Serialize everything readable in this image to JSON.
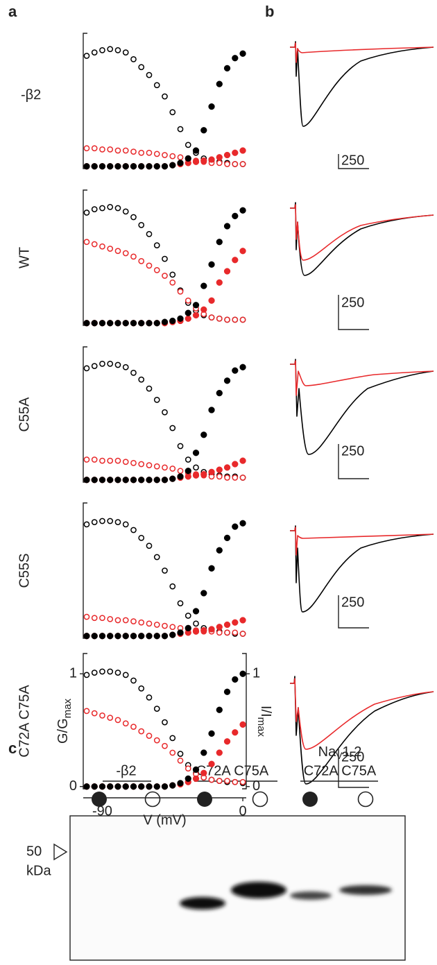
{
  "panel_labels": [
    "a",
    "b",
    "c"
  ],
  "chart_data": [
    {
      "type": "scatter",
      "title": "-β2",
      "x": [
        -100,
        -95,
        -90,
        -85,
        -80,
        -75,
        -70,
        -65,
        -60,
        -55,
        -50,
        -45,
        -40,
        -35,
        -30,
        -25,
        -20,
        -15,
        -10,
        -5,
        0
      ],
      "xlim": [
        -102.2,
        2.2
      ],
      "ylim": [
        -0.02,
        1.18
      ],
      "y2lim": [
        -0.02,
        1.18
      ],
      "series": [
        {
          "color": "#000000",
          "marker": "open",
          "axis": "y2",
          "values": [
            0.98,
            1.01,
            1.03,
            1.04,
            1.03,
            1.01,
            0.95,
            0.88,
            0.81,
            0.72,
            0.62,
            0.48,
            0.33,
            0.19,
            0.12,
            0.07,
            0.05,
            0.04,
            0.03,
            0.02,
            0.02
          ]
        },
        {
          "color": "#e8292b",
          "marker": "open",
          "axis": "y2",
          "values": [
            0.16,
            0.16,
            0.15,
            0.15,
            0.14,
            0.14,
            0.13,
            0.12,
            0.12,
            0.11,
            0.1,
            0.09,
            0.08,
            0.06,
            0.05,
            0.04,
            0.03,
            0.03,
            0.02,
            0.02,
            0.02
          ]
        },
        {
          "color": "#e8292b",
          "marker": "filled",
          "values": [
            0,
            0,
            0,
            0,
            0,
            0,
            0,
            0,
            0,
            0,
            0,
            0.01,
            0.02,
            0.03,
            0.04,
            0.05,
            0.06,
            0.08,
            0.1,
            0.12,
            0.14
          ]
        },
        {
          "color": "#000000",
          "marker": "filled",
          "values": [
            0,
            0,
            0,
            0,
            0,
            0,
            0,
            0,
            0,
            0,
            0,
            0.01,
            0.03,
            0.07,
            0.14,
            0.32,
            0.53,
            0.73,
            0.87,
            0.96,
            1
          ]
        }
      ]
    },
    {
      "type": "scatter",
      "title": "WT",
      "x": [
        -100,
        -95,
        -90,
        -85,
        -80,
        -75,
        -70,
        -65,
        -60,
        -55,
        -50,
        -45,
        -40,
        -35,
        -30,
        -25,
        -20,
        -15,
        -10,
        -5,
        0
      ],
      "xlim": [
        -102.2,
        2.2
      ],
      "ylim": [
        -0.02,
        1.18
      ],
      "y2lim": [
        -0.02,
        1.18
      ],
      "series": [
        {
          "color": "#000000",
          "marker": "open",
          "axis": "y2",
          "values": [
            0.98,
            1.01,
            1.02,
            1.03,
            1.02,
            0.99,
            0.94,
            0.87,
            0.79,
            0.69,
            0.57,
            0.43,
            0.29,
            0.18,
            0.11,
            0.07,
            0.05,
            0.04,
            0.03,
            0.03,
            0.03
          ]
        },
        {
          "color": "#e8292b",
          "marker": "open",
          "axis": "y2",
          "values": [
            0.72,
            0.7,
            0.68,
            0.66,
            0.64,
            0.62,
            0.59,
            0.55,
            0.51,
            0.47,
            0.42,
            0.36,
            0.28,
            0.2,
            0.13,
            0.08,
            0.05,
            0.04,
            0.03,
            0.03,
            0.03
          ]
        },
        {
          "color": "#e8292b",
          "marker": "filled",
          "values": [
            0,
            0,
            0,
            0,
            0,
            0,
            0,
            0,
            0,
            0,
            0,
            0.01,
            0.02,
            0.04,
            0.07,
            0.12,
            0.2,
            0.36,
            0.46,
            0.56,
            0.64
          ]
        },
        {
          "color": "#000000",
          "marker": "filled",
          "values": [
            0,
            0,
            0,
            0,
            0,
            0,
            0,
            0,
            0,
            0,
            0.01,
            0.02,
            0.04,
            0.09,
            0.16,
            0.33,
            0.52,
            0.72,
            0.86,
            0.95,
            1
          ]
        }
      ]
    },
    {
      "type": "scatter",
      "title": "C55A",
      "x": [
        -100,
        -95,
        -90,
        -85,
        -80,
        -75,
        -70,
        -65,
        -60,
        -55,
        -50,
        -45,
        -40,
        -35,
        -30,
        -25,
        -20,
        -15,
        -10,
        -5,
        0
      ],
      "xlim": [
        -102.2,
        2.2
      ],
      "ylim": [
        -0.02,
        1.18
      ],
      "y2lim": [
        -0.02,
        1.18
      ],
      "series": [
        {
          "color": "#000000",
          "marker": "open",
          "axis": "y2",
          "values": [
            0.99,
            1.01,
            1.03,
            1.03,
            1.02,
            1.0,
            0.95,
            0.89,
            0.81,
            0.71,
            0.6,
            0.46,
            0.3,
            0.18,
            0.11,
            0.07,
            0.05,
            0.04,
            0.03,
            0.03,
            0.02
          ]
        },
        {
          "color": "#e8292b",
          "marker": "open",
          "axis": "y2",
          "values": [
            0.18,
            0.18,
            0.17,
            0.17,
            0.17,
            0.16,
            0.15,
            0.14,
            0.13,
            0.12,
            0.11,
            0.1,
            0.08,
            0.06,
            0.05,
            0.04,
            0.03,
            0.03,
            0.02,
            0.02,
            0.02
          ]
        },
        {
          "color": "#e8292b",
          "marker": "filled",
          "values": [
            0,
            0,
            0,
            0,
            0,
            0,
            0,
            0,
            0,
            0,
            0,
            0.01,
            0.02,
            0.03,
            0.04,
            0.05,
            0.07,
            0.09,
            0.11,
            0.14,
            0.17
          ]
        },
        {
          "color": "#000000",
          "marker": "filled",
          "values": [
            0,
            0,
            0,
            0,
            0,
            0,
            0,
            0,
            0,
            0,
            0,
            0.01,
            0.03,
            0.08,
            0.24,
            0.4,
            0.62,
            0.77,
            0.88,
            0.97,
            1
          ]
        }
      ]
    },
    {
      "type": "scatter",
      "title": "C55S",
      "x": [
        -100,
        -95,
        -90,
        -85,
        -80,
        -75,
        -70,
        -65,
        -60,
        -55,
        -50,
        -45,
        -40,
        -35,
        -30,
        -25,
        -20,
        -15,
        -10,
        -5,
        0
      ],
      "xlim": [
        -102.2,
        2.2
      ],
      "ylim": [
        -0.02,
        1.18
      ],
      "y2lim": [
        -0.02,
        1.18
      ],
      "series": [
        {
          "color": "#000000",
          "marker": "open",
          "axis": "y2",
          "values": [
            0.99,
            1.01,
            1.02,
            1.02,
            1.01,
            0.99,
            0.94,
            0.87,
            0.8,
            0.7,
            0.58,
            0.44,
            0.29,
            0.18,
            0.11,
            0.07,
            0.05,
            0.04,
            0.03,
            0.02,
            0.02
          ]
        },
        {
          "color": "#e8292b",
          "marker": "open",
          "axis": "y2",
          "values": [
            0.17,
            0.16,
            0.16,
            0.15,
            0.14,
            0.14,
            0.13,
            0.12,
            0.11,
            0.1,
            0.09,
            0.08,
            0.07,
            0.06,
            0.05,
            0.04,
            0.04,
            0.03,
            0.03,
            0.03,
            0.02
          ]
        },
        {
          "color": "#e8292b",
          "marker": "filled",
          "values": [
            0,
            0,
            0,
            0,
            0,
            0,
            0,
            0,
            0,
            0,
            0,
            0.01,
            0.02,
            0.03,
            0.04,
            0.05,
            0.06,
            0.08,
            0.1,
            0.12,
            0.14
          ]
        },
        {
          "color": "#000000",
          "marker": "filled",
          "values": [
            0,
            0,
            0,
            0,
            0,
            0,
            0,
            0,
            0,
            0,
            0,
            0.01,
            0.03,
            0.07,
            0.22,
            0.38,
            0.6,
            0.76,
            0.87,
            0.97,
            1
          ]
        }
      ]
    },
    {
      "type": "scatter",
      "title": "C72A C75A",
      "x": [
        -100,
        -95,
        -90,
        -85,
        -80,
        -75,
        -70,
        -65,
        -60,
        -55,
        -50,
        -45,
        -40,
        -35,
        -30,
        -25,
        -20,
        -15,
        -10,
        -5,
        0
      ],
      "xlim": [
        -102.2,
        2.2
      ],
      "ylim": [
        -0.02,
        1.18
      ],
      "y2lim": [
        -0.02,
        1.18
      ],
      "xticks": [
        -90,
        0
      ],
      "yticks": [
        0,
        1
      ],
      "y2ticks": [
        0,
        1
      ],
      "xlabel": "V (mV)",
      "ylabel": [
        "G/G",
        "max"
      ],
      "y2label": [
        "I/I",
        "max"
      ],
      "series": [
        {
          "color": "#000000",
          "marker": "open",
          "axis": "y2",
          "values": [
            0.99,
            1.01,
            1.02,
            1.02,
            1.01,
            0.99,
            0.94,
            0.87,
            0.79,
            0.69,
            0.57,
            0.43,
            0.29,
            0.19,
            0.12,
            0.08,
            0.06,
            0.05,
            0.04,
            0.04,
            0.03
          ]
        },
        {
          "color": "#e8292b",
          "marker": "open",
          "axis": "y2",
          "values": [
            0.67,
            0.65,
            0.63,
            0.61,
            0.59,
            0.56,
            0.53,
            0.49,
            0.45,
            0.41,
            0.36,
            0.3,
            0.23,
            0.16,
            0.11,
            0.08,
            0.06,
            0.05,
            0.05,
            0.04,
            0.04
          ]
        },
        {
          "color": "#e8292b",
          "marker": "filled",
          "values": [
            0,
            0,
            0,
            0,
            0,
            0,
            0,
            0,
            0,
            0,
            0,
            0.01,
            0.02,
            0.04,
            0.07,
            0.12,
            0.2,
            0.3,
            0.4,
            0.48,
            0.55
          ]
        },
        {
          "color": "#000000",
          "marker": "filled",
          "values": [
            0,
            0,
            0,
            0,
            0,
            0,
            0,
            0,
            0,
            0,
            0,
            0.01,
            0.03,
            0.07,
            0.15,
            0.3,
            0.47,
            0.68,
            0.84,
            0.95,
            1
          ]
        }
      ]
    }
  ],
  "trace_scale_label": "250",
  "blot": {
    "group_labels": [
      "-β2",
      "C72A C75A",
      "C72A C75A"
    ],
    "channel_label": [
      "Na",
      "V",
      "1.2"
    ],
    "marker": "50",
    "unit": "kDa"
  }
}
